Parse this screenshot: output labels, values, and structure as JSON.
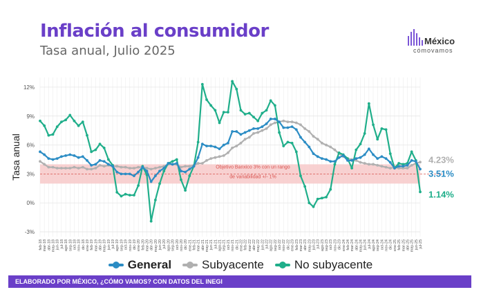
{
  "header": {
    "title": "Inflación al consumidor",
    "subtitle": "Tasa anual, Julio 2025"
  },
  "logo": {
    "line1": "México",
    "line2": "cómovamos",
    "color": "#7a55d6"
  },
  "footer": {
    "text": "ELABORADO POR MÉXICO, ¿CÓMO VAMOS? CON DATOS DEL INEGI",
    "bg": "#6a3fc8"
  },
  "chart_data": {
    "type": "line",
    "ylabel": "Tasa anual",
    "ylim": [
      -3.5,
      13
    ],
    "yticks": [
      "12%",
      "9%",
      "6%",
      "3%",
      "0%",
      "-3%"
    ],
    "ytick_values": [
      12,
      9,
      6,
      3,
      0,
      -3
    ],
    "x": [
      "feb-18",
      "mar-18",
      "abr-18",
      "may-18",
      "jun-18",
      "jul-18",
      "ago-18",
      "sep-18",
      "oct-18",
      "nov-18",
      "dic-18",
      "ene-19",
      "feb-19",
      "mar-19",
      "abr-19",
      "may-19",
      "jun-19",
      "jul-19",
      "ago-19",
      "sep-19",
      "oct-19",
      "nov-19",
      "dic-19",
      "ene-20",
      "feb-20",
      "mar-20",
      "abr-20",
      "may-20",
      "jun-20",
      "jul-20",
      "ago-20",
      "sep-20",
      "oct-20",
      "nov-20",
      "dic-20",
      "ene-21",
      "feb-21",
      "mar-21",
      "abr-21",
      "may-21",
      "jun-21",
      "jul-21",
      "ago-21",
      "sep-21",
      "oct-21",
      "nov-21",
      "dic-21",
      "ene-22",
      "feb-22",
      "mar-22",
      "abr-22",
      "may-22",
      "jun-22",
      "jul-22",
      "ago-22",
      "sep-22",
      "oct-22",
      "nov-22",
      "dic-22",
      "ene-23",
      "feb-23",
      "mar-23",
      "abr-23",
      "may-23",
      "jun-23",
      "jul-23",
      "ago-23",
      "sep-23",
      "oct-23",
      "nov-23",
      "dic-23",
      "ene-24",
      "feb-24",
      "mar-24",
      "abr-24",
      "may-24",
      "jun-24",
      "jul-24",
      "ago-24",
      "sep-24",
      "oct-24",
      "nov-24",
      "dic-24",
      "ene-25",
      "feb-25",
      "mar-25",
      "abr-25",
      "may-25",
      "jun-25",
      "jul-25"
    ],
    "band": {
      "low": 2,
      "high": 4,
      "target": 3,
      "color": "#f7c9c9",
      "label_line1": "Objetivo Banxico 3% con un rango",
      "label_line2": "de variabilidad +/- 1%",
      "label_color": "#d9534f"
    },
    "series": [
      {
        "name": "General",
        "color": "#2b8cc4",
        "values": [
          5.3,
          5.0,
          4.6,
          4.5,
          4.6,
          4.8,
          4.9,
          5.0,
          4.9,
          4.7,
          4.8,
          4.4,
          3.9,
          4.0,
          4.4,
          4.3,
          4.0,
          3.8,
          3.2,
          3.0,
          3.0,
          3.0,
          2.8,
          3.2,
          3.7,
          3.3,
          2.2,
          2.8,
          3.3,
          3.6,
          4.1,
          4.0,
          4.1,
          3.3,
          3.2,
          3.5,
          3.8,
          4.7,
          6.1,
          5.9,
          5.9,
          5.8,
          5.6,
          6.0,
          6.2,
          7.4,
          7.4,
          7.1,
          7.3,
          7.5,
          7.7,
          7.7,
          7.9,
          8.2,
          8.7,
          8.7,
          8.4,
          7.8,
          7.8,
          7.9,
          7.6,
          6.8,
          6.3,
          5.8,
          5.1,
          4.8,
          4.6,
          4.5,
          4.3,
          4.3,
          4.7,
          4.9,
          4.4,
          4.4,
          4.6,
          4.7,
          5.0,
          5.6,
          5.0,
          4.6,
          4.8,
          4.6,
          4.2,
          3.6,
          3.8,
          3.8,
          3.9,
          4.4,
          4.3,
          3.5
        ]
      },
      {
        "name": "Subyacente",
        "color": "#b0b0b0",
        "values": [
          4.3,
          4.0,
          3.7,
          3.7,
          3.6,
          3.6,
          3.6,
          3.6,
          3.7,
          3.6,
          3.7,
          3.5,
          3.5,
          3.6,
          3.9,
          3.8,
          3.9,
          3.8,
          3.8,
          3.7,
          3.7,
          3.6,
          3.6,
          3.7,
          3.7,
          3.6,
          3.5,
          3.6,
          3.7,
          3.8,
          4.0,
          3.99,
          3.98,
          3.7,
          3.8,
          3.8,
          3.9,
          4.1,
          4.1,
          4.4,
          4.6,
          4.7,
          4.8,
          4.9,
          5.2,
          5.7,
          5.9,
          6.2,
          6.6,
          6.8,
          7.2,
          7.3,
          7.5,
          7.7,
          8.1,
          8.3,
          8.4,
          8.5,
          8.4,
          8.4,
          8.3,
          8.1,
          7.7,
          7.4,
          6.9,
          6.6,
          6.2,
          6.0,
          5.8,
          5.5,
          5.1,
          4.8,
          4.6,
          4.5,
          4.4,
          4.2,
          4.1,
          4.0,
          4.0,
          3.9,
          3.8,
          3.7,
          3.6,
          3.7,
          3.6,
          3.6,
          3.6,
          3.9,
          4.1,
          4.23
        ]
      },
      {
        "name": "No subyacente",
        "color": "#1fae8a",
        "values": [
          8.5,
          8.0,
          7.0,
          7.1,
          7.9,
          8.4,
          8.6,
          9.1,
          8.5,
          8.0,
          8.4,
          7.0,
          5.3,
          5.5,
          6.1,
          5.7,
          4.5,
          3.9,
          1.1,
          0.7,
          0.9,
          0.8,
          0.8,
          1.8,
          3.8,
          2.9,
          -1.9,
          0.3,
          2.0,
          3.3,
          4.1,
          4.3,
          4.5,
          2.4,
          1.3,
          2.8,
          3.8,
          6.3,
          12.3,
          10.7,
          10.1,
          9.6,
          8.3,
          9.4,
          9.4,
          12.6,
          11.8,
          9.6,
          9.2,
          9.3,
          8.9,
          8.5,
          9.3,
          9.6,
          10.6,
          10.1,
          7.3,
          5.9,
          6.3,
          6.2,
          5.3,
          2.8,
          1.7,
          0.0,
          -0.4,
          0.4,
          0.5,
          0.6,
          1.4,
          4.0,
          5.2,
          5.0,
          4.6,
          3.6,
          5.5,
          6.1,
          7.2,
          10.3,
          8.1,
          6.6,
          7.7,
          7.6,
          5.1,
          3.6,
          4.1,
          4.0,
          4.1,
          5.3,
          4.4,
          1.14
        ]
      }
    ],
    "end_labels": [
      {
        "series": "Subyacente",
        "text": "4.23%"
      },
      {
        "series": "General",
        "text": "3.51%"
      },
      {
        "series": "No subyacente",
        "text": "1.14%"
      }
    ],
    "legend": {
      "position": "bottom"
    },
    "grid": true
  }
}
